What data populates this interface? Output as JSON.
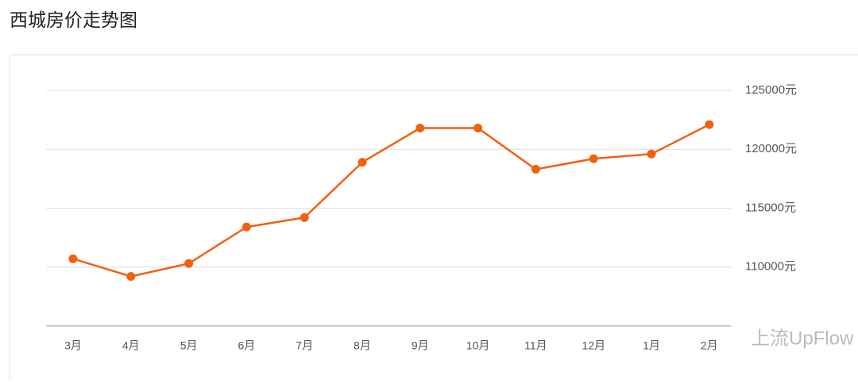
{
  "chart_data": {
    "type": "line",
    "title": "西城房价走势图",
    "categories": [
      "3月",
      "4月",
      "5月",
      "6月",
      "7月",
      "8月",
      "9月",
      "10月",
      "11月",
      "12月",
      "1月",
      "2月"
    ],
    "series": [
      {
        "name": "西城",
        "color": "#f0600f",
        "values": [
          110700,
          109200,
          110300,
          113400,
          114200,
          118900,
          121800,
          121800,
          118300,
          119200,
          119600,
          122100
        ]
      }
    ],
    "ylim": [
      105000,
      125000
    ],
    "yticks": [
      {
        "value": 110000,
        "label": "110000元"
      },
      {
        "value": 115000,
        "label": "115000元"
      },
      {
        "value": 120000,
        "label": "120000元"
      },
      {
        "value": 125000,
        "label": "125000元"
      }
    ],
    "grid": true,
    "watermark": "上流UpFlow"
  }
}
